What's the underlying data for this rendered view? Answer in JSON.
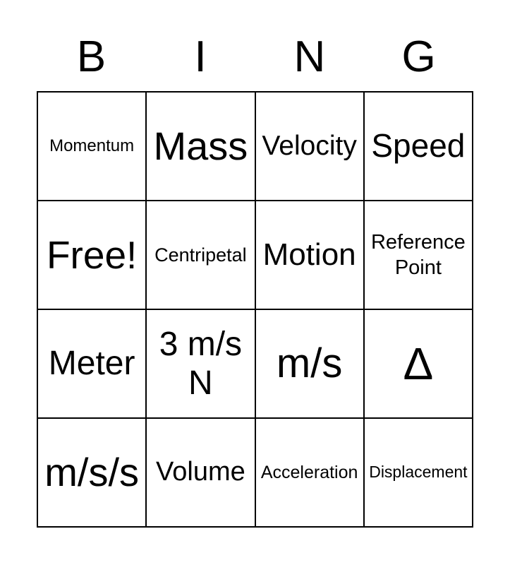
{
  "header": {
    "letters": [
      "B",
      "I",
      "N",
      "G"
    ]
  },
  "grid": {
    "rows": [
      {
        "cells": [
          "Momentum",
          "Mass",
          "Velocity",
          "Speed"
        ]
      },
      {
        "cells": [
          "Free!",
          "Centripetal",
          "Motion",
          "Reference Point"
        ]
      },
      {
        "cells": [
          "Meter",
          "3 m/s N",
          "m/s",
          "Δ"
        ]
      },
      {
        "cells": [
          "m/s/s",
          "Volume",
          "Acceleration",
          "Displacement"
        ]
      }
    ]
  },
  "colors": {
    "background": "#ffffff",
    "grid_line": "#000000",
    "text": "#000000"
  }
}
